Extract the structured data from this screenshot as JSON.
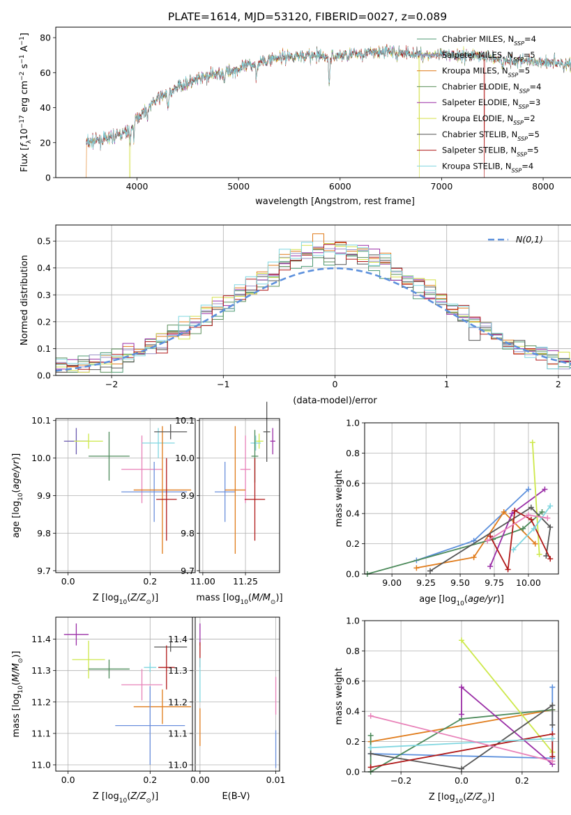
{
  "figure_title": "PLATE=1614, MJD=53120, FIBERID=0027, z=0.089",
  "models": [
    {
      "name": "Chabrier MILES",
      "nssp": "4",
      "color": "#4c9a72"
    },
    {
      "name": "Salpeter MILES",
      "nssp": "5",
      "color": "#9b8fc7"
    },
    {
      "name": "Kroupa MILES",
      "nssp": "5",
      "color": "#e07b1a"
    },
    {
      "name": "Chabrier ELODIE",
      "nssp": "4",
      "color": "#5a8f5a"
    },
    {
      "name": "Salpeter ELODIE",
      "nssp": "3",
      "color": "#9a2ea6"
    },
    {
      "name": "Kroupa ELODIE",
      "nssp": "2",
      "color": "#d4e04a"
    },
    {
      "name": "Chabrier STELIB",
      "nssp": "5",
      "color": "#555555"
    },
    {
      "name": "Salpeter STELIB",
      "nssp": "5",
      "color": "#b01818"
    },
    {
      "name": "Kroupa STELIB",
      "nssp": "4",
      "color": "#7fd6e0"
    }
  ],
  "nssp_prefix": "N",
  "nssp_sub": "SSP",
  "chart_data": [
    {
      "id": "spectrum",
      "type": "line",
      "xlabel": "wavelength [Angstrom, rest frame]",
      "ylabel": "Flux [f_λ10^-17 erg cm^-2 s^-1 A^-1]",
      "xlim": [
        3200,
        8700
      ],
      "ylim": [
        0,
        86
      ],
      "xticks": [
        4000,
        5000,
        6000,
        7000,
        8000
      ],
      "yticks": [
        0,
        20,
        40,
        60,
        80
      ],
      "x_start": 3500,
      "x_end": 8450,
      "legend": "top-right",
      "continuum_anchors": [
        [
          3500,
          20
        ],
        [
          3700,
          22
        ],
        [
          3900,
          26
        ],
        [
          4000,
          34
        ],
        [
          4200,
          45
        ],
        [
          4400,
          52
        ],
        [
          4700,
          58
        ],
        [
          5000,
          62
        ],
        [
          5300,
          68
        ],
        [
          5600,
          70
        ],
        [
          5900,
          69
        ],
        [
          6200,
          71
        ],
        [
          6500,
          72
        ],
        [
          6900,
          70
        ],
        [
          7300,
          70
        ],
        [
          7700,
          67
        ],
        [
          8100,
          66
        ],
        [
          8450,
          64
        ]
      ],
      "absorption_lines": [
        [
          3934,
          8
        ],
        [
          3969,
          7
        ],
        [
          4102,
          5
        ],
        [
          4304,
          10
        ],
        [
          4340,
          4
        ],
        [
          4861,
          4
        ],
        [
          5175,
          7
        ],
        [
          5270,
          4
        ],
        [
          5893,
          15
        ],
        [
          6563,
          4
        ],
        [
          7600,
          5
        ],
        [
          8200,
          3
        ]
      ],
      "spikes": [
        [
          3500,
          0,
          "Kroupa MILES"
        ],
        [
          3930,
          0,
          "Kroupa ELODIE"
        ],
        [
          6780,
          0,
          "Kroupa ELODIE"
        ],
        [
          7420,
          0,
          "Salpeter STELIB"
        ]
      ]
    },
    {
      "id": "residual_histogram",
      "type": "bar",
      "xlabel": "(data-model)/error",
      "ylabel": "Normed distribution",
      "xlim": [
        -2.5,
        2.5
      ],
      "ylim": [
        0,
        0.56
      ],
      "xticks": [
        -2,
        -1,
        0,
        1,
        2
      ],
      "yticks": [
        0.0,
        0.1,
        0.2,
        0.3,
        0.4,
        0.5
      ],
      "bin_width": 0.1,
      "reference_curve": "N(0,1)",
      "reference_color": "#5b8fdc",
      "legend": "top-right"
    },
    {
      "id": "age_vs_Z",
      "type": "scatter",
      "xlabel": "Z [log10(Z/Z☉)]",
      "ylabel": "age [log10(age/yr)]",
      "xlim": [
        -0.03,
        0.31
      ],
      "ylim": [
        9.695,
        10.105
      ],
      "xticks": [
        0.0,
        0.2
      ],
      "yticks": [
        9.7,
        9.8,
        9.9,
        10.0,
        10.1
      ],
      "points": [
        {
          "color": "#6a5aaf",
          "x": 0.02,
          "y": 10.045,
          "xerr": 0.03,
          "yerr": 0.035
        },
        {
          "color": "#cde84a",
          "x": 0.05,
          "y": 10.045,
          "xerr": 0.035,
          "yerr": 0.02
        },
        {
          "color": "#4c8a5a",
          "x": 0.1,
          "y": 10.005,
          "xerr": 0.05,
          "yerr": 0.065
        },
        {
          "color": "#e880b8",
          "x": 0.18,
          "y": 9.97,
          "xerr": 0.05,
          "yerr": 0.09
        },
        {
          "color": "#7fd6e0",
          "x": 0.22,
          "y": 10.04,
          "xerr": 0.04,
          "yerr": 0.04
        },
        {
          "color": "#6a8fdc",
          "x": 0.21,
          "y": 9.91,
          "xerr": 0.08,
          "yerr": 0.08
        },
        {
          "color": "#e07b1a",
          "x": 0.23,
          "y": 9.915,
          "xerr": 0.07,
          "yerr": 0.17
        },
        {
          "color": "#b01818",
          "x": 0.24,
          "y": 9.89,
          "xerr": 0.025,
          "yerr": 0.11
        },
        {
          "color": "#555555",
          "x": 0.25,
          "y": 10.07,
          "xerr": 0.04,
          "yerr": 0.02
        }
      ]
    },
    {
      "id": "age_vs_mass",
      "type": "scatter",
      "xlabel": "mass [log10(M/M☉)]",
      "ylabel": "",
      "xlim": [
        10.98,
        11.45
      ],
      "ylim": [
        9.695,
        10.105
      ],
      "xticks": [
        11.0,
        11.25
      ],
      "yticks": [
        9.7,
        9.8,
        9.9,
        10.0,
        10.1
      ],
      "points": [
        {
          "color": "#9a2ea6",
          "x": 11.41,
          "y": 10.045,
          "xerr": 0.015,
          "yerr": 0.035
        },
        {
          "color": "#cde84a",
          "x": 11.33,
          "y": 10.045,
          "xerr": 0.025,
          "yerr": 0.02
        },
        {
          "color": "#7fd6e0",
          "x": 11.31,
          "y": 10.04,
          "xerr": 0.03,
          "yerr": 0.02
        },
        {
          "color": "#555555",
          "x": 11.375,
          "y": 10.07,
          "xerr": 0.02,
          "yerr": 0.08
        },
        {
          "color": "#4c8a5a",
          "x": 11.305,
          "y": 10.005,
          "xerr": 0.02,
          "yerr": 0.07
        },
        {
          "color": "#e880b8",
          "x": 11.25,
          "y": 9.97,
          "xerr": 0.03,
          "yerr": 0.09
        },
        {
          "color": "#6a8fdc",
          "x": 11.13,
          "y": 9.91,
          "xerr": 0.06,
          "yerr": 0.08
        },
        {
          "color": "#e07b1a",
          "x": 11.19,
          "y": 9.915,
          "xerr": 0.06,
          "yerr": 0.17
        },
        {
          "color": "#b01818",
          "x": 11.305,
          "y": 9.89,
          "xerr": 0.06,
          "yerr": 0.11
        }
      ]
    },
    {
      "id": "mass_weight_vs_age",
      "type": "line",
      "xlabel": "age [log10(age/yr)]",
      "ylabel": "mass weight",
      "xlim": [
        8.8,
        10.22
      ],
      "ylim": [
        0,
        1.0
      ],
      "xticks": [
        9.0,
        9.25,
        9.5,
        9.75,
        10.0
      ],
      "yticks": [
        0.0,
        0.2,
        0.4,
        0.6,
        0.8,
        1.0
      ],
      "series": [
        {
          "color": "#5b8fdc",
          "points": [
            [
              9.18,
              0.09
            ],
            [
              9.6,
              0.22
            ],
            [
              10.0,
              0.56
            ]
          ]
        },
        {
          "color": "#e07b1a",
          "points": [
            [
              9.18,
              0.04
            ],
            [
              9.6,
              0.11
            ],
            [
              9.82,
              0.41
            ],
            [
              10.05,
              0.2
            ]
          ]
        },
        {
          "color": "#4c8a5a",
          "points": [
            [
              8.82,
              0.0
            ],
            [
              9.74,
              0.23
            ],
            [
              9.96,
              0.3
            ],
            [
              10.1,
              0.41
            ]
          ]
        },
        {
          "color": "#9a2ea6",
          "points": [
            [
              9.72,
              0.05
            ],
            [
              9.88,
              0.4
            ],
            [
              10.12,
              0.56
            ]
          ]
        },
        {
          "color": "#cde84a",
          "points": [
            [
              10.03,
              0.87
            ],
            [
              10.08,
              0.13
            ]
          ]
        },
        {
          "color": "#555555",
          "points": [
            [
              9.28,
              0.02
            ],
            [
              10.02,
              0.44
            ],
            [
              10.16,
              0.31
            ],
            [
              10.13,
              0.12
            ]
          ]
        },
        {
          "color": "#b01818",
          "points": [
            [
              9.72,
              0.25
            ],
            [
              9.85,
              0.03
            ],
            [
              9.9,
              0.42
            ],
            [
              10.02,
              0.36
            ],
            [
              10.16,
              0.1
            ]
          ]
        },
        {
          "color": "#7fd6e0",
          "points": [
            [
              9.89,
              0.16
            ],
            [
              10.04,
              0.3
            ],
            [
              10.16,
              0.45
            ]
          ]
        },
        {
          "color": "#e880b8",
          "points": [
            [
              9.7,
              0.22
            ],
            [
              10.0,
              0.39
            ],
            [
              10.14,
              0.37
            ]
          ]
        }
      ]
    },
    {
      "id": "mass_vs_Z",
      "type": "scatter",
      "xlabel": "Z [log10(Z/Z☉)]",
      "ylabel": "mass [log10(M/M☉)]",
      "xlim": [
        -0.03,
        0.31
      ],
      "ylim": [
        10.98,
        11.47
      ],
      "xticks": [
        0.0,
        0.2
      ],
      "yticks": [
        11.0,
        11.1,
        11.2,
        11.3,
        11.4
      ],
      "points": [
        {
          "color": "#9a2ea6",
          "x": 0.02,
          "y": 11.415,
          "xerr": 0.03,
          "yerr": 0.035
        },
        {
          "color": "#cde84a",
          "x": 0.05,
          "y": 11.335,
          "xerr": 0.04,
          "yerr": 0.06
        },
        {
          "color": "#4c8a5a",
          "x": 0.1,
          "y": 11.305,
          "xerr": 0.05,
          "yerr": 0.03
        },
        {
          "color": "#7fd6e0",
          "x": 0.2,
          "y": 11.31,
          "xerr": 0.015,
          "yerr": 0.015
        },
        {
          "color": "#e880b8",
          "x": 0.18,
          "y": 11.255,
          "xerr": 0.05,
          "yerr": 0.05
        },
        {
          "color": "#e07b1a",
          "x": 0.23,
          "y": 11.185,
          "xerr": 0.07,
          "yerr": 0.055
        },
        {
          "color": "#6a8fdc",
          "x": 0.2,
          "y": 11.125,
          "xerr": 0.085,
          "yerr": 0.125
        },
        {
          "color": "#555555",
          "x": 0.25,
          "y": 11.375,
          "xerr": 0.04,
          "yerr": 0.015
        },
        {
          "color": "#b01818",
          "x": 0.24,
          "y": 11.31,
          "xerr": 0.02,
          "yerr": 0.07
        }
      ]
    },
    {
      "id": "mass_vs_EBV",
      "type": "scatter",
      "xlabel": "E(B-V)",
      "ylabel": "",
      "xlim": [
        -0.001,
        0.0105
      ],
      "ylim": [
        10.98,
        11.47
      ],
      "xticks": [
        0.0,
        0.01
      ],
      "yticks": [
        11.0,
        11.1,
        11.2,
        11.3,
        11.4
      ],
      "points": [
        {
          "color": "#9a2ea6",
          "x": 0.0,
          "y": 11.415,
          "xerr": 0.0,
          "yerr": 0.035
        },
        {
          "color": "#b01818",
          "x": 0.0,
          "y": 11.35,
          "xerr": 0.0,
          "yerr": 0.04
        },
        {
          "color": "#7fd6e0",
          "x": 0.0,
          "y": 11.27,
          "xerr": 0.0,
          "yerr": 0.07
        },
        {
          "color": "#e07b1a",
          "x": 0.0,
          "y": 11.12,
          "xerr": 0.0,
          "yerr": 0.06
        },
        {
          "color": "#e880b8",
          "x": 0.01,
          "y": 11.22,
          "xerr": 0.0,
          "yerr": 0.06
        },
        {
          "color": "#6a8fdc",
          "x": 0.01,
          "y": 11.05,
          "xerr": 0.0,
          "yerr": 0.06
        }
      ]
    },
    {
      "id": "mass_weight_vs_Z",
      "type": "line",
      "xlabel": "Z [log10(Z/Z☉)]",
      "ylabel": "mass weight",
      "xlim": [
        -0.32,
        0.32
      ],
      "ylim": [
        0,
        1.0
      ],
      "xticks": [
        -0.2,
        0.0,
        0.2
      ],
      "yticks": [
        0.0,
        0.2,
        0.4,
        0.6,
        0.8,
        1.0
      ],
      "series": [
        {
          "color": "#5b8fdc",
          "points": [
            [
              -0.3,
              0.12
            ],
            [
              0.3,
              0.09
            ],
            [
              0.3,
              0.56
            ]
          ]
        },
        {
          "color": "#e07b1a",
          "points": [
            [
              -0.3,
              0.2
            ],
            [
              0.3,
              0.41
            ]
          ]
        },
        {
          "color": "#4c8a5a",
          "points": [
            [
              -0.3,
              0.24
            ],
            [
              -0.3,
              0.0
            ],
            [
              0.0,
              0.35
            ],
            [
              0.3,
              0.41
            ]
          ]
        },
        {
          "color": "#9a2ea6",
          "points": [
            [
              0.0,
              0.38
            ],
            [
              0.0,
              0.56
            ],
            [
              0.3,
              0.05
            ]
          ]
        },
        {
          "color": "#cde84a",
          "points": [
            [
              0.0,
              0.87
            ],
            [
              0.3,
              0.13
            ]
          ]
        },
        {
          "color": "#555555",
          "points": [
            [
              -0.3,
              0.12
            ],
            [
              0.0,
              0.02
            ],
            [
              0.3,
              0.44
            ],
            [
              0.3,
              0.31
            ]
          ]
        },
        {
          "color": "#b01818",
          "points": [
            [
              -0.3,
              0.03
            ],
            [
              0.3,
              0.25
            ],
            [
              0.3,
              0.1
            ]
          ]
        },
        {
          "color": "#7fd6e0",
          "points": [
            [
              -0.3,
              0.16
            ],
            [
              0.3,
              0.22
            ]
          ]
        },
        {
          "color": "#e880b8",
          "points": [
            [
              -0.3,
              0.37
            ],
            [
              0.3,
              0.07
            ]
          ]
        }
      ]
    }
  ]
}
